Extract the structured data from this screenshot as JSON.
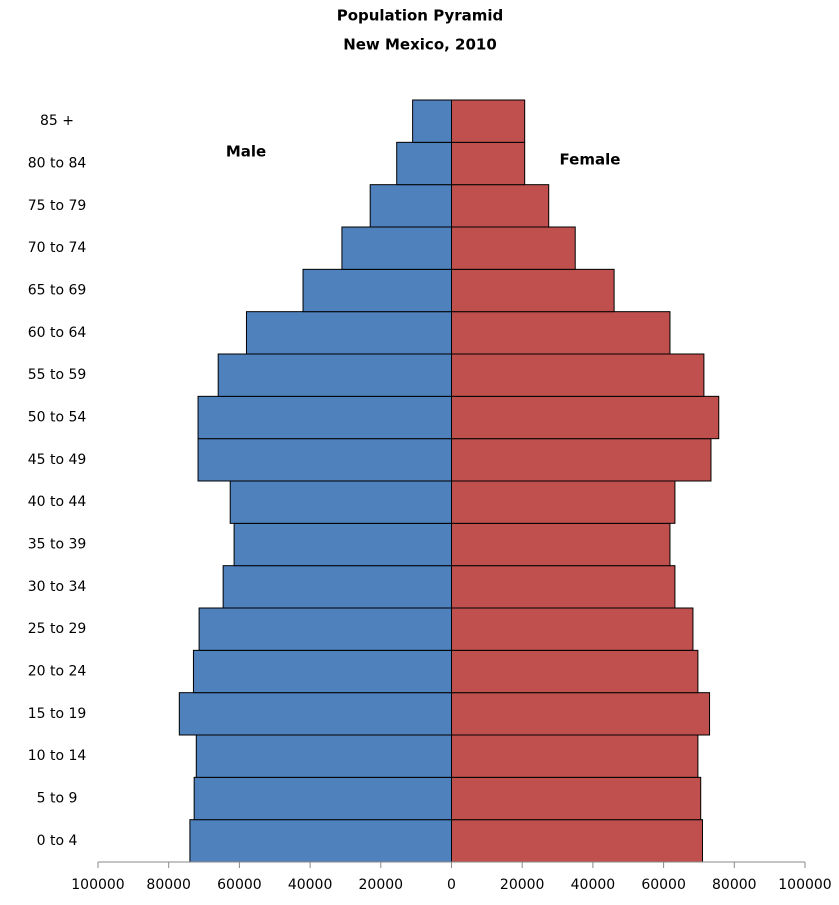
{
  "chart_data": {
    "type": "pyramid",
    "title": "Population Pyramid",
    "subtitle": "New Mexico, 2010",
    "annotations": [
      "Male",
      "Female"
    ],
    "categories": [
      "0 to 4",
      "5 to 9",
      "10 to 14",
      "15 to 19",
      "20 to 24",
      "25 to 29",
      "30 to 34",
      "35 to 39",
      "40 to 44",
      "45 to 49",
      "50 to 54",
      "55 to 59",
      "60 to 64",
      "65 to 69",
      "70 to 74",
      "75 to 79",
      "80 to 84",
      "85 +"
    ],
    "series": [
      {
        "name": "Male",
        "color": "#4f81bd",
        "values": [
          74000,
          72800,
          72200,
          77000,
          73000,
          71400,
          64600,
          61500,
          62600,
          71700,
          71700,
          66000,
          58000,
          42000,
          31000,
          23000,
          15500,
          11000
        ]
      },
      {
        "name": "Female",
        "color": "#c0504d",
        "values": [
          71000,
          70500,
          69700,
          73000,
          69700,
          68300,
          63200,
          61800,
          63200,
          73400,
          75600,
          71400,
          61800,
          46000,
          35000,
          27500,
          20700,
          20700
        ]
      }
    ],
    "xlim": [
      -100000,
      100000
    ],
    "xticks": [
      {
        "value": -100000,
        "label": "100000"
      },
      {
        "value": -80000,
        "label": "80000"
      },
      {
        "value": -60000,
        "label": "60000"
      },
      {
        "value": -40000,
        "label": "40000"
      },
      {
        "value": -20000,
        "label": "20000"
      },
      0,
      20000,
      40000,
      60000,
      80000,
      100000
    ]
  }
}
